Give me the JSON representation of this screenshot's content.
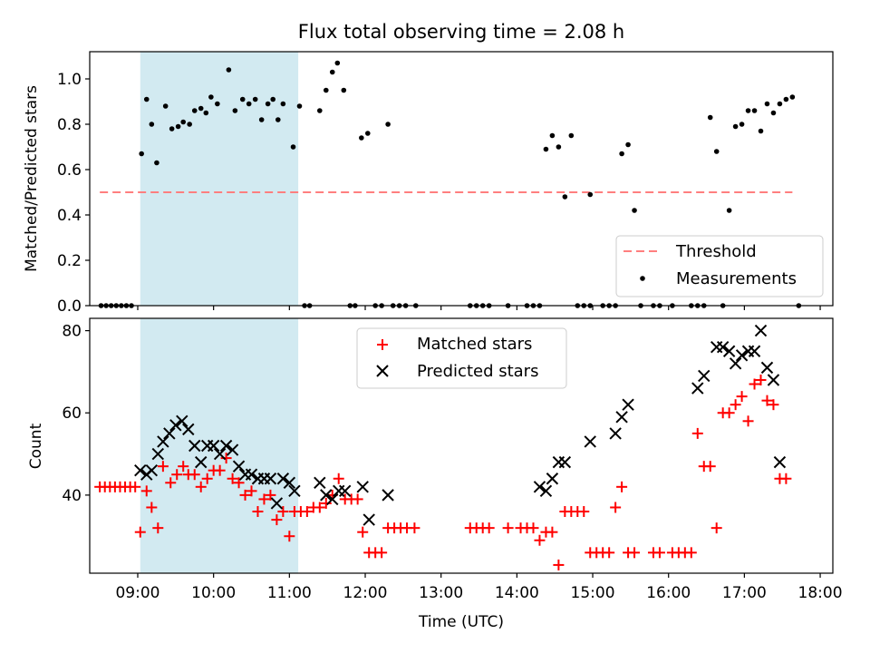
{
  "chart_data": [
    {
      "type": "scatter",
      "title": "Flux total observing time = 2.08 h",
      "xlabel": "",
      "ylabel": "Matched/Predicted stars",
      "xlim": [
        "08:22",
        "18:10"
      ],
      "ylim": [
        0,
        1.12
      ],
      "yticks": [
        0.0,
        0.2,
        0.4,
        0.6,
        0.8,
        1.0
      ],
      "ytick_labels": [
        "0.0",
        "0.2",
        "0.4",
        "0.6",
        "0.8",
        "1.0"
      ],
      "legend": {
        "placement": "lower right",
        "entries": [
          "Threshold",
          "Measurements"
        ]
      },
      "highlight_span": {
        "x0": "09:02",
        "x1": "11:07",
        "color": "#add8e6"
      },
      "threshold": {
        "name": "Threshold",
        "y": 0.5,
        "x0": "08:30",
        "x1": "17:38",
        "color": "#ff7f7f",
        "style": "dashed"
      },
      "series": [
        {
          "name": "Measurements",
          "color": "#000000",
          "marker": "dot",
          "points": [
            [
              "08:31",
              0
            ],
            [
              "08:35",
              0
            ],
            [
              "08:39",
              0
            ],
            [
              "08:43",
              0
            ],
            [
              "08:47",
              0
            ],
            [
              "08:51",
              0
            ],
            [
              "08:55",
              0
            ],
            [
              "09:03",
              0.67
            ],
            [
              "09:07",
              0.91
            ],
            [
              "09:11",
              0.8
            ],
            [
              "09:15",
              0.63
            ],
            [
              "09:22",
              0.88
            ],
            [
              "09:27",
              0.78
            ],
            [
              "09:32",
              0.79
            ],
            [
              "09:36",
              0.81
            ],
            [
              "09:41",
              0.8
            ],
            [
              "09:45",
              0.86
            ],
            [
              "09:50",
              0.87
            ],
            [
              "09:54",
              0.85
            ],
            [
              "09:58",
              0.92
            ],
            [
              "10:03",
              0.89
            ],
            [
              "10:12",
              1.04
            ],
            [
              "10:17",
              0.86
            ],
            [
              "10:23",
              0.91
            ],
            [
              "10:28",
              0.89
            ],
            [
              "10:33",
              0.91
            ],
            [
              "10:38",
              0.82
            ],
            [
              "10:43",
              0.89
            ],
            [
              "10:47",
              0.91
            ],
            [
              "10:51",
              0.82
            ],
            [
              "10:55",
              0.89
            ],
            [
              "11:03",
              0.7
            ],
            [
              "11:08",
              0.88
            ],
            [
              "11:12",
              0
            ],
            [
              "11:16",
              0
            ],
            [
              "11:24",
              0.86
            ],
            [
              "11:29",
              0.95
            ],
            [
              "11:34",
              1.03
            ],
            [
              "11:38",
              1.07
            ],
            [
              "11:43",
              0.95
            ],
            [
              "11:48",
              0
            ],
            [
              "11:52",
              0
            ],
            [
              "11:57",
              0.74
            ],
            [
              "12:02",
              0.76
            ],
            [
              "12:08",
              0
            ],
            [
              "12:13",
              0
            ],
            [
              "12:18",
              0.8
            ],
            [
              "12:22",
              0
            ],
            [
              "12:27",
              0
            ],
            [
              "12:32",
              0
            ],
            [
              "12:40",
              0
            ],
            [
              "13:23",
              0
            ],
            [
              "13:28",
              0
            ],
            [
              "13:33",
              0
            ],
            [
              "13:38",
              0
            ],
            [
              "13:53",
              0
            ],
            [
              "14:08",
              0
            ],
            [
              "14:13",
              0
            ],
            [
              "14:18",
              0
            ],
            [
              "14:23",
              0.69
            ],
            [
              "14:28",
              0.75
            ],
            [
              "14:33",
              0.7
            ],
            [
              "14:38",
              0.48
            ],
            [
              "14:43",
              0.75
            ],
            [
              "14:48",
              0
            ],
            [
              "14:53",
              0
            ],
            [
              "14:58",
              0
            ],
            [
              "14:58",
              0.49
            ],
            [
              "15:08",
              0
            ],
            [
              "15:13",
              0
            ],
            [
              "15:18",
              0
            ],
            [
              "15:23",
              0.67
            ],
            [
              "15:28",
              0.71
            ],
            [
              "15:33",
              0.42
            ],
            [
              "15:38",
              0
            ],
            [
              "15:48",
              0
            ],
            [
              "15:53",
              0
            ],
            [
              "16:03",
              0
            ],
            [
              "16:18",
              0
            ],
            [
              "16:23",
              0
            ],
            [
              "16:28",
              0
            ],
            [
              "16:33",
              0.83
            ],
            [
              "16:38",
              0.68
            ],
            [
              "16:43",
              0
            ],
            [
              "16:48",
              0.42
            ],
            [
              "16:53",
              0.79
            ],
            [
              "16:58",
              0.8
            ],
            [
              "17:03",
              0.86
            ],
            [
              "17:08",
              0.86
            ],
            [
              "17:13",
              0.77
            ],
            [
              "17:18",
              0.89
            ],
            [
              "17:23",
              0.85
            ],
            [
              "17:28",
              0.89
            ],
            [
              "17:33",
              0.91
            ],
            [
              "17:38",
              0.92
            ],
            [
              "17:43",
              0
            ]
          ]
        }
      ]
    },
    {
      "type": "scatter",
      "title": "",
      "xlabel": "Time (UTC)",
      "ylabel": "Count",
      "xlim": [
        "08:22",
        "18:10"
      ],
      "ylim": [
        21,
        83
      ],
      "yticks": [
        40,
        60,
        80
      ],
      "ytick_labels": [
        "40",
        "60",
        "80"
      ],
      "xticks": [
        "09:00",
        "10:00",
        "11:00",
        "12:00",
        "13:00",
        "14:00",
        "15:00",
        "16:00",
        "17:00",
        "18:00"
      ],
      "legend": {
        "placement": "upper center",
        "entries": [
          "Matched stars",
          "Predicted stars"
        ]
      },
      "highlight_span": {
        "x0": "09:02",
        "x1": "11:07",
        "color": "#add8e6"
      },
      "series": [
        {
          "name": "Matched stars",
          "color": "#ff0000",
          "marker": "plus",
          "points": [
            [
              "08:30",
              42
            ],
            [
              "08:34",
              42
            ],
            [
              "08:38",
              42
            ],
            [
              "08:42",
              42
            ],
            [
              "08:46",
              42
            ],
            [
              "08:50",
              42
            ],
            [
              "08:54",
              42
            ],
            [
              "08:58",
              42
            ],
            [
              "09:02",
              31
            ],
            [
              "09:07",
              41
            ],
            [
              "09:11",
              37
            ],
            [
              "09:16",
              32
            ],
            [
              "09:20",
              47
            ],
            [
              "09:26",
              43
            ],
            [
              "09:31",
              45
            ],
            [
              "09:36",
              47
            ],
            [
              "09:40",
              45
            ],
            [
              "09:45",
              45
            ],
            [
              "09:50",
              42
            ],
            [
              "09:55",
              44
            ],
            [
              "10:00",
              46
            ],
            [
              "10:05",
              46
            ],
            [
              "10:10",
              49
            ],
            [
              "10:15",
              44
            ],
            [
              "10:20",
              43
            ],
            [
              "10:25",
              40
            ],
            [
              "10:30",
              41
            ],
            [
              "10:35",
              36
            ],
            [
              "10:40",
              39
            ],
            [
              "10:45",
              40
            ],
            [
              "10:50",
              34
            ],
            [
              "10:55",
              36
            ],
            [
              "11:00",
              30
            ],
            [
              "11:04",
              36
            ],
            [
              "11:09",
              36
            ],
            [
              "11:14",
              36
            ],
            [
              "11:19",
              37
            ],
            [
              "11:24",
              37
            ],
            [
              "11:29",
              38
            ],
            [
              "11:34",
              40
            ],
            [
              "11:39",
              44
            ],
            [
              "11:44",
              39
            ],
            [
              "11:49",
              39
            ],
            [
              "11:54",
              39
            ],
            [
              "11:58",
              31
            ],
            [
              "12:03",
              26
            ],
            [
              "12:08",
              26
            ],
            [
              "12:13",
              26
            ],
            [
              "12:18",
              32
            ],
            [
              "12:23",
              32
            ],
            [
              "12:28",
              32
            ],
            [
              "12:33",
              32
            ],
            [
              "12:39",
              32
            ],
            [
              "13:23",
              32
            ],
            [
              "13:28",
              32
            ],
            [
              "13:33",
              32
            ],
            [
              "13:38",
              32
            ],
            [
              "13:53",
              32
            ],
            [
              "14:03",
              32
            ],
            [
              "14:08",
              32
            ],
            [
              "14:13",
              32
            ],
            [
              "14:18",
              29
            ],
            [
              "14:23",
              31
            ],
            [
              "14:28",
              31
            ],
            [
              "14:33",
              23
            ],
            [
              "14:38",
              36
            ],
            [
              "14:43",
              36
            ],
            [
              "14:48",
              36
            ],
            [
              "14:53",
              36
            ],
            [
              "14:58",
              26
            ],
            [
              "15:03",
              26
            ],
            [
              "15:08",
              26
            ],
            [
              "15:13",
              26
            ],
            [
              "15:18",
              37
            ],
            [
              "15:23",
              42
            ],
            [
              "15:28",
              26
            ],
            [
              "15:33",
              26
            ],
            [
              "15:48",
              26
            ],
            [
              "15:53",
              26
            ],
            [
              "16:03",
              26
            ],
            [
              "16:08",
              26
            ],
            [
              "16:13",
              26
            ],
            [
              "16:18",
              26
            ],
            [
              "16:23",
              55
            ],
            [
              "16:28",
              47
            ],
            [
              "16:33",
              47
            ],
            [
              "16:38",
              32
            ],
            [
              "16:43",
              60
            ],
            [
              "16:48",
              60
            ],
            [
              "16:53",
              62
            ],
            [
              "16:58",
              64
            ],
            [
              "17:03",
              58
            ],
            [
              "17:08",
              67
            ],
            [
              "17:13",
              68
            ],
            [
              "17:18",
              63
            ],
            [
              "17:23",
              62
            ],
            [
              "17:28",
              44
            ],
            [
              "17:33",
              44
            ]
          ]
        },
        {
          "name": "Predicted stars",
          "color": "#000000",
          "marker": "x",
          "points": [
            [
              "09:02",
              46
            ],
            [
              "09:07",
              45
            ],
            [
              "09:11",
              46
            ],
            [
              "09:16",
              50
            ],
            [
              "09:20",
              53
            ],
            [
              "09:25",
              55
            ],
            [
              "09:30",
              57
            ],
            [
              "09:35",
              58
            ],
            [
              "09:40",
              56
            ],
            [
              "09:45",
              52
            ],
            [
              "09:50",
              48
            ],
            [
              "09:55",
              52
            ],
            [
              "10:00",
              52
            ],
            [
              "10:05",
              50
            ],
            [
              "10:10",
              52
            ],
            [
              "10:15",
              51
            ],
            [
              "10:20",
              47
            ],
            [
              "10:25",
              45
            ],
            [
              "10:30",
              45
            ],
            [
              "10:35",
              44
            ],
            [
              "10:40",
              44
            ],
            [
              "10:45",
              44
            ],
            [
              "10:50",
              38
            ],
            [
              "10:55",
              44
            ],
            [
              "11:00",
              43
            ],
            [
              "11:04",
              41
            ],
            [
              "11:24",
              43
            ],
            [
              "11:29",
              40
            ],
            [
              "11:34",
              39
            ],
            [
              "11:39",
              41
            ],
            [
              "11:44",
              41
            ],
            [
              "11:58",
              42
            ],
            [
              "12:03",
              34
            ],
            [
              "12:18",
              40
            ],
            [
              "14:18",
              42
            ],
            [
              "14:23",
              41
            ],
            [
              "14:28",
              44
            ],
            [
              "14:33",
              48
            ],
            [
              "14:38",
              48
            ],
            [
              "14:58",
              53
            ],
            [
              "15:18",
              55
            ],
            [
              "15:23",
              59
            ],
            [
              "15:28",
              62
            ],
            [
              "16:23",
              66
            ],
            [
              "16:28",
              69
            ],
            [
              "16:38",
              76
            ],
            [
              "16:43",
              76
            ],
            [
              "16:48",
              75
            ],
            [
              "16:53",
              72
            ],
            [
              "16:58",
              74
            ],
            [
              "17:03",
              75
            ],
            [
              "17:08",
              75
            ],
            [
              "17:13",
              80
            ],
            [
              "17:18",
              71
            ],
            [
              "17:23",
              68
            ],
            [
              "17:28",
              48
            ]
          ]
        }
      ]
    }
  ]
}
